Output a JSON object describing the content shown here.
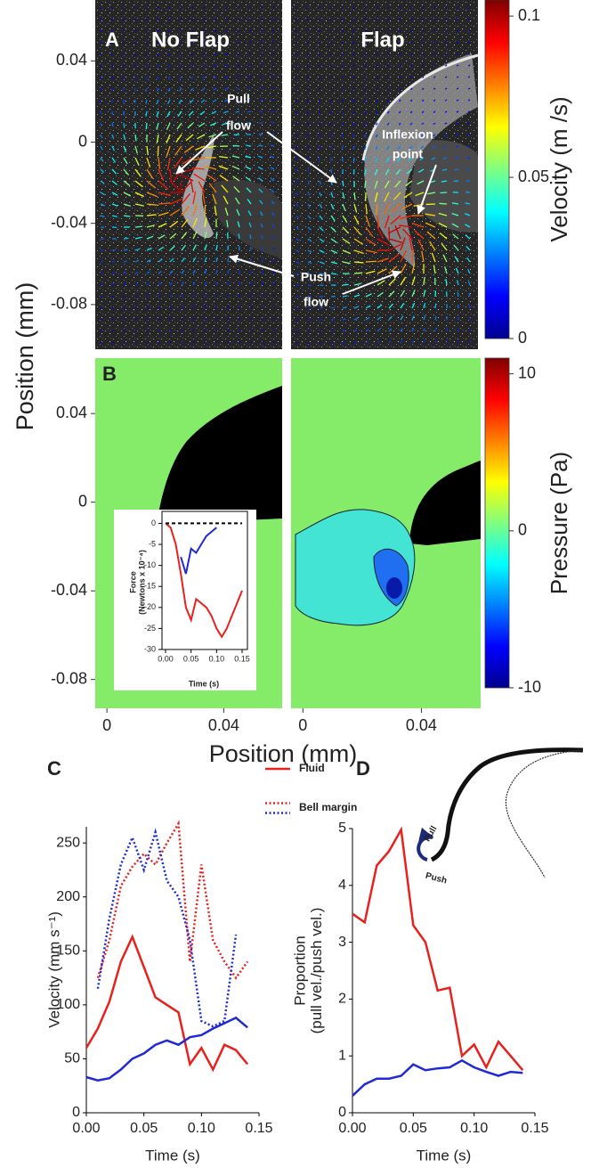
{
  "figure": {
    "panel_a": {
      "label": "A",
      "titles": [
        "No Flap",
        "Flap"
      ],
      "pull_flow": [
        "Pull",
        "flow"
      ],
      "push_flow": [
        "Push",
        "flow"
      ],
      "inflexion_point": [
        "Inflexion",
        "point"
      ]
    },
    "panel_b": {
      "label": "B"
    },
    "panel_c": {
      "label": "C"
    },
    "panel_d": {
      "label": "D",
      "inset_labels": [
        "Pull",
        "Push"
      ]
    },
    "position_label_y": "Position (mm)",
    "position_label_x": "Position (mm)"
  },
  "chart_data": [
    {
      "type": "velocity-field",
      "ylim": [
        -0.102,
        0.07
      ],
      "yticks": [
        0.04,
        0,
        -0.04,
        -0.08
      ],
      "clim": [
        0,
        0.105
      ],
      "cticks": [
        0.1,
        0.05,
        0
      ],
      "clabel": "Velocity (m /s)"
    },
    {
      "type": "pressure-map",
      "ylim": [
        -0.093,
        0.065
      ],
      "yticks": [
        0.04,
        0,
        -0.04,
        -0.08
      ],
      "xlim": [
        -0.004,
        0.06
      ],
      "xticks": [
        0,
        0.04
      ],
      "clim": [
        -10,
        11
      ],
      "cticks": [
        10,
        0,
        -10
      ],
      "clabel": "Pressure (Pa)"
    },
    {
      "type": "line",
      "ylabel": [
        "Force",
        "(Newtons x 10⁻⁴)"
      ],
      "xlabel": "Time (s)",
      "x": [
        0,
        0.01,
        0.02,
        0.03,
        0.04,
        0.05,
        0.06,
        0.07,
        0.08,
        0.09,
        0.1,
        0.11,
        0.12,
        0.13,
        0.14,
        0.15
      ],
      "xlim": [
        0,
        0.15
      ],
      "xticks": [
        {
          "value": 0,
          "label": "0.00"
        },
        {
          "value": 0.05,
          "label": "0.05"
        },
        {
          "value": 0.1,
          "label": "0.10"
        },
        {
          "value": 0.15,
          "label": "0.15"
        }
      ],
      "ylim": [
        -30,
        2
      ],
      "yticks": [
        0,
        -5,
        -10,
        -15,
        -20,
        -25,
        -30
      ],
      "series": [
        {
          "color": "#e8211d",
          "dash": "solid",
          "values": [
            0,
            -1,
            -5,
            -12,
            -20,
            -23,
            -18,
            -19,
            -20,
            -22,
            -25,
            -27,
            -25,
            -22,
            -19,
            -16
          ]
        },
        {
          "color": "#1f2ad6",
          "dash": "solid",
          "values": [
            null,
            null,
            null,
            -8,
            -12,
            -6,
            -7,
            -5,
            -3,
            -2,
            -1,
            null,
            null,
            null,
            null,
            null
          ]
        },
        {
          "color": "#000000",
          "dash": "dashed",
          "values": [
            0,
            0,
            0,
            0,
            0,
            0,
            0,
            0,
            0,
            0,
            0,
            0,
            0,
            0,
            0,
            0
          ]
        }
      ]
    },
    {
      "type": "line",
      "ylabel": [
        "Velocity (mm s⁻¹)"
      ],
      "xlabel": "Time (s)",
      "x": [
        0,
        0.01,
        0.02,
        0.03,
        0.04,
        0.05,
        0.06,
        0.07,
        0.08,
        0.09,
        0.1,
        0.11,
        0.12,
        0.13,
        0.14
      ],
      "xlim": [
        0,
        0.15
      ],
      "xticks": [
        {
          "value": 0,
          "label": "0.00"
        },
        {
          "value": 0.05,
          "label": "0.05"
        },
        {
          "value": 0.1,
          "label": "0.10"
        },
        {
          "value": 0.15,
          "label": "0.15"
        }
      ],
      "ylim": [
        0,
        265
      ],
      "yticks": [
        0,
        50,
        100,
        150,
        200,
        250
      ],
      "legend": [
        {
          "label": "Fluid",
          "dash": "solid",
          "colors": [
            "#e8211d"
          ]
        },
        {
          "label": "Bell margin",
          "dash": "dotted",
          "colors": [
            "#e8211d",
            "#1f2ad6"
          ]
        }
      ],
      "series": [
        {
          "color": "#e8211d",
          "dash": "solid",
          "values": [
            60,
            78,
            103,
            140,
            163,
            135,
            107,
            100,
            93,
            45,
            60,
            40,
            63,
            58,
            45
          ]
        },
        {
          "color": "#1f2ad6",
          "dash": "solid",
          "values": [
            33,
            30,
            32,
            40,
            50,
            55,
            63,
            67,
            63,
            70,
            72,
            78,
            83,
            88,
            79
          ]
        },
        {
          "color": "#e8211d",
          "dash": "dotted",
          "values": [
            null,
            125,
            160,
            210,
            228,
            240,
            230,
            250,
            268,
            140,
            230,
            160,
            140,
            125,
            140
          ]
        },
        {
          "color": "#1f2ad6",
          "dash": "dotted",
          "values": [
            null,
            115,
            180,
            230,
            255,
            225,
            260,
            215,
            200,
            160,
            85,
            80,
            85,
            165,
            null
          ]
        }
      ]
    },
    {
      "type": "line",
      "ylabel": [
        "Proportion",
        "(pull vel./push vel.)"
      ],
      "xlabel": "Time (s)",
      "x": [
        0,
        0.01,
        0.02,
        0.03,
        0.04,
        0.05,
        0.06,
        0.07,
        0.08,
        0.09,
        0.1,
        0.11,
        0.12,
        0.13,
        0.14
      ],
      "xlim": [
        0,
        0.15
      ],
      "xticks": [
        {
          "value": 0,
          "label": "0.00"
        },
        {
          "value": 0.05,
          "label": "0.05"
        },
        {
          "value": 0.1,
          "label": "0.10"
        },
        {
          "value": 0.15,
          "label": "0.15"
        }
      ],
      "ylim": [
        0,
        5
      ],
      "yticks": [
        0,
        1,
        2,
        3,
        4,
        5
      ],
      "series": [
        {
          "color": "#e8211d",
          "dash": "solid",
          "values": [
            3.5,
            3.35,
            4.35,
            4.6,
            4.98,
            3.3,
            3.0,
            2.15,
            2.2,
            1.0,
            1.2,
            0.8,
            1.25,
            1.0,
            0.75
          ]
        },
        {
          "color": "#1f2ad6",
          "dash": "solid",
          "values": [
            0.3,
            0.5,
            0.6,
            0.6,
            0.65,
            0.85,
            0.75,
            0.78,
            0.8,
            0.92,
            0.8,
            0.72,
            0.65,
            0.72,
            0.7
          ]
        }
      ]
    }
  ]
}
